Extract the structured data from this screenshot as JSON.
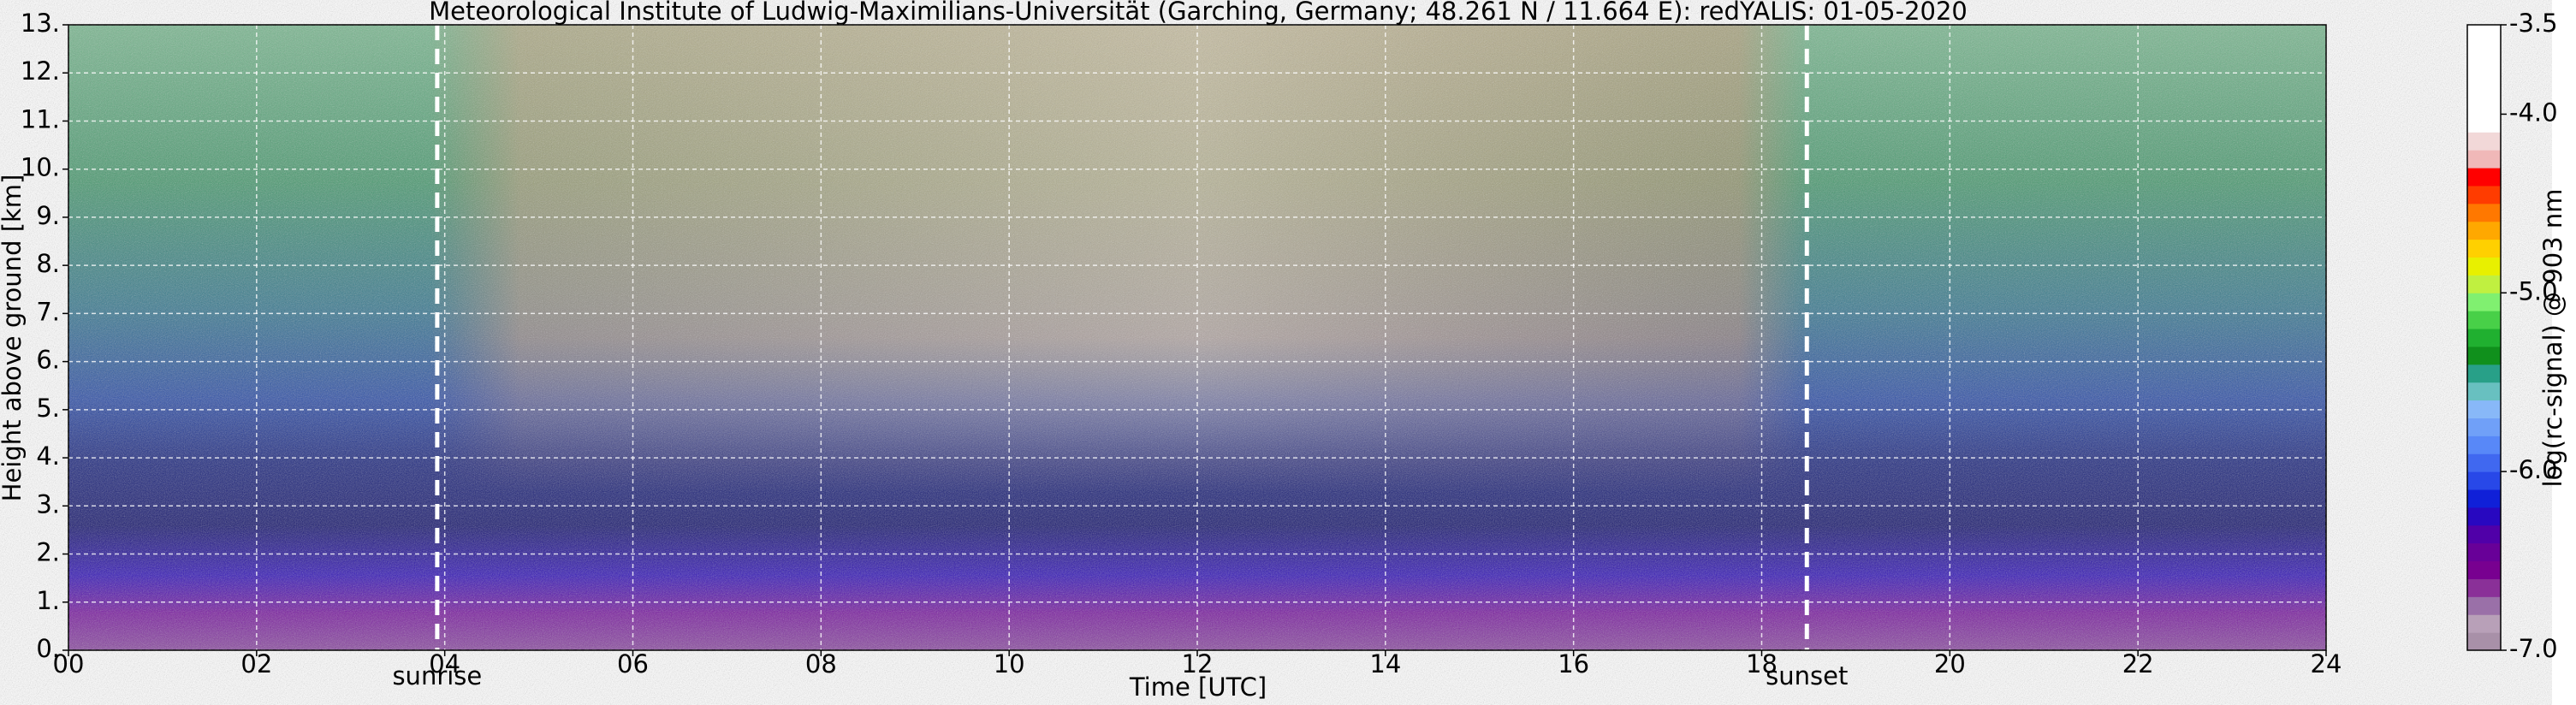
{
  "chart_data": {
    "type": "heatmap",
    "title": "Meteorological Institute of Ludwig-Maximilians-Universität (Garching, Germany; 48.261 N / 11.664 E):    redYALIS: 01-05-2020",
    "x_label": "Time [UTC]",
    "y_label": "Height above ground [km]",
    "xlim": [
      0,
      24
    ],
    "xticks": [
      {
        "value": 0,
        "label": "00"
      },
      {
        "value": 2,
        "label": "02"
      },
      {
        "value": 4,
        "label": "04"
      },
      {
        "value": 6,
        "label": "06"
      },
      {
        "value": 8,
        "label": "08"
      },
      10,
      12,
      14,
      16,
      18,
      20,
      22,
      24
    ],
    "ylim": [
      0,
      13
    ],
    "yticks": [
      {
        "value": 0,
        "label": "0."
      },
      {
        "value": 1,
        "label": "1."
      },
      {
        "value": 2,
        "label": "2."
      },
      {
        "value": 3,
        "label": "3."
      },
      {
        "value": 4,
        "label": "4."
      },
      {
        "value": 5,
        "label": "5."
      },
      {
        "value": 6,
        "label": "6."
      },
      {
        "value": 7,
        "label": "7."
      },
      {
        "value": 8,
        "label": "8."
      },
      {
        "value": 9,
        "label": "9."
      },
      {
        "value": 10,
        "label": "10."
      },
      {
        "value": 11,
        "label": "11."
      },
      {
        "value": 12,
        "label": "12."
      },
      {
        "value": 13,
        "label": "13."
      }
    ],
    "grid": true,
    "annotations": [
      {
        "label": "sunrise",
        "x": 3.92
      },
      {
        "label": "sunset",
        "x": 18.48
      }
    ],
    "colorbar": {
      "label": "log(rc-signal) @ 903 nm",
      "lim": [
        -7,
        -3.5
      ],
      "ticks": [
        {
          "value": -3.5,
          "label": "-3.5"
        },
        {
          "value": -4,
          "label": "-4.0"
        },
        {
          "value": -5,
          "label": "-5.0"
        },
        {
          "value": -6,
          "label": "-6.0"
        },
        {
          "value": -7,
          "label": "-7.0"
        }
      ],
      "colors": [
        "#a890a8",
        "#b8a0b8",
        "#9a70a8",
        "#8a3098",
        "#780090",
        "#680098",
        "#5000a8",
        "#2808c0",
        "#1020d8",
        "#2848e8",
        "#4068f0",
        "#5888f8",
        "#70a0f8",
        "#88b8f8",
        "#68c0c0",
        "#28a088",
        "#10901c",
        "#20b030",
        "#48d048",
        "#80f070",
        "#c0f040",
        "#e8f000",
        "#ffd000",
        "#ffa800",
        "#ff7800",
        "#ff3c00",
        "#ff0000",
        "#f0b8b8",
        "#f2d8d8",
        "#ffffff",
        "#ffffff",
        "#ffffff",
        "#ffffff",
        "#ffffff",
        "#ffffff"
      ]
    }
  }
}
